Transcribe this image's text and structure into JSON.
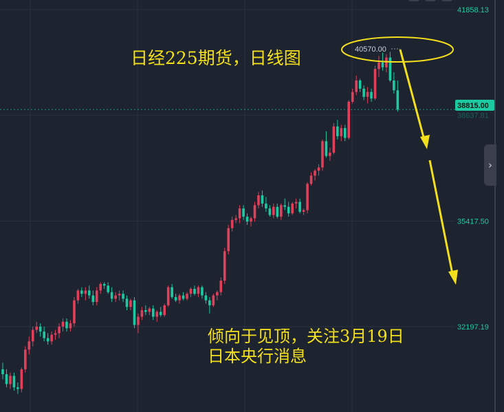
{
  "title": "日经225期货，日线图",
  "annotation": [
    "倾向于见顶，关注3月19日",
    "日本央行消息"
  ],
  "high_label": "40570.00",
  "current_price": "38815.00",
  "colors": {
    "up": "#e0405a",
    "down": "#1cc9a0",
    "annotation": "#f3df1c",
    "background": "#1e2330",
    "grid": "#2b3140"
  },
  "nav_icon": "chevron-right-icon",
  "chart_data": {
    "type": "candlestick",
    "y_ticks": [
      "41858.13",
      "38637.81",
      "35417.50",
      "32197.19"
    ],
    "ylim": [
      29300,
      42200
    ],
    "grid": true,
    "current_price": 38815,
    "candles": [
      {
        "o": 30900,
        "h": 31100,
        "l": 30600,
        "c": 30750
      },
      {
        "o": 30750,
        "h": 30900,
        "l": 30350,
        "c": 30450
      },
      {
        "o": 30450,
        "h": 30800,
        "l": 30300,
        "c": 30700
      },
      {
        "o": 30700,
        "h": 30800,
        "l": 30250,
        "c": 30350
      },
      {
        "o": 30350,
        "h": 30500,
        "l": 30150,
        "c": 30300
      },
      {
        "o": 30300,
        "h": 30950,
        "l": 30200,
        "c": 30900
      },
      {
        "o": 30900,
        "h": 31600,
        "l": 30800,
        "c": 31500
      },
      {
        "o": 31500,
        "h": 31900,
        "l": 31350,
        "c": 31750
      },
      {
        "o": 31750,
        "h": 32200,
        "l": 31600,
        "c": 32100
      },
      {
        "o": 32100,
        "h": 32350,
        "l": 32000,
        "c": 32200
      },
      {
        "o": 32200,
        "h": 32300,
        "l": 31900,
        "c": 32050
      },
      {
        "o": 32050,
        "h": 32200,
        "l": 31750,
        "c": 31850
      },
      {
        "o": 31850,
        "h": 32000,
        "l": 31650,
        "c": 31750
      },
      {
        "o": 31750,
        "h": 32050,
        "l": 31650,
        "c": 31950
      },
      {
        "o": 31950,
        "h": 32100,
        "l": 31800,
        "c": 32000
      },
      {
        "o": 32000,
        "h": 32300,
        "l": 31850,
        "c": 32200
      },
      {
        "o": 32200,
        "h": 32450,
        "l": 32050,
        "c": 32350
      },
      {
        "o": 32350,
        "h": 32450,
        "l": 32050,
        "c": 32150
      },
      {
        "o": 32150,
        "h": 32400,
        "l": 32050,
        "c": 32300
      },
      {
        "o": 32300,
        "h": 33100,
        "l": 32200,
        "c": 33000
      },
      {
        "o": 33000,
        "h": 33350,
        "l": 32900,
        "c": 33300
      },
      {
        "o": 33300,
        "h": 33400,
        "l": 33100,
        "c": 33200
      },
      {
        "o": 33200,
        "h": 33400,
        "l": 33000,
        "c": 33300
      },
      {
        "o": 33300,
        "h": 33450,
        "l": 33050,
        "c": 33150
      },
      {
        "o": 33150,
        "h": 33300,
        "l": 32850,
        "c": 32950
      },
      {
        "o": 32950,
        "h": 33400,
        "l": 32850,
        "c": 33300
      },
      {
        "o": 33300,
        "h": 33550,
        "l": 33200,
        "c": 33500
      },
      {
        "o": 33500,
        "h": 33550,
        "l": 33350,
        "c": 33450
      },
      {
        "o": 33450,
        "h": 33550,
        "l": 33200,
        "c": 33250
      },
      {
        "o": 33250,
        "h": 33400,
        "l": 32950,
        "c": 33050
      },
      {
        "o": 33050,
        "h": 33250,
        "l": 32950,
        "c": 33150
      },
      {
        "o": 33150,
        "h": 33300,
        "l": 33000,
        "c": 33200
      },
      {
        "o": 33200,
        "h": 33300,
        "l": 32950,
        "c": 33050
      },
      {
        "o": 33050,
        "h": 33150,
        "l": 32700,
        "c": 32800
      },
      {
        "o": 32800,
        "h": 33050,
        "l": 32700,
        "c": 33000
      },
      {
        "o": 33000,
        "h": 33100,
        "l": 32150,
        "c": 32250
      },
      {
        "o": 32250,
        "h": 32600,
        "l": 32000,
        "c": 32500
      },
      {
        "o": 32500,
        "h": 32800,
        "l": 32400,
        "c": 32700
      },
      {
        "o": 32700,
        "h": 32850,
        "l": 32550,
        "c": 32650
      },
      {
        "o": 32650,
        "h": 32800,
        "l": 32550,
        "c": 32750
      },
      {
        "o": 32750,
        "h": 32850,
        "l": 32400,
        "c": 32500
      },
      {
        "o": 32500,
        "h": 32700,
        "l": 32350,
        "c": 32650
      },
      {
        "o": 32650,
        "h": 32800,
        "l": 32500,
        "c": 32550
      },
      {
        "o": 32550,
        "h": 32900,
        "l": 32500,
        "c": 32850
      },
      {
        "o": 32850,
        "h": 33450,
        "l": 32800,
        "c": 33400
      },
      {
        "o": 33400,
        "h": 33500,
        "l": 33050,
        "c": 33100
      },
      {
        "o": 33100,
        "h": 33200,
        "l": 32950,
        "c": 33000
      },
      {
        "o": 33000,
        "h": 33200,
        "l": 32900,
        "c": 33150
      },
      {
        "o": 33150,
        "h": 33250,
        "l": 33000,
        "c": 33050
      },
      {
        "o": 33050,
        "h": 33250,
        "l": 33000,
        "c": 33200
      },
      {
        "o": 33200,
        "h": 33400,
        "l": 33100,
        "c": 33350
      },
      {
        "o": 33350,
        "h": 33450,
        "l": 33150,
        "c": 33200
      },
      {
        "o": 33200,
        "h": 33450,
        "l": 33100,
        "c": 33400
      },
      {
        "o": 33400,
        "h": 33450,
        "l": 33050,
        "c": 33150
      },
      {
        "o": 33150,
        "h": 33250,
        "l": 32900,
        "c": 33000
      },
      {
        "o": 33000,
        "h": 33100,
        "l": 32600,
        "c": 32850
      },
      {
        "o": 32850,
        "h": 33200,
        "l": 32800,
        "c": 33150
      },
      {
        "o": 33150,
        "h": 33300,
        "l": 33000,
        "c": 33250
      },
      {
        "o": 33250,
        "h": 33700,
        "l": 33150,
        "c": 33600
      },
      {
        "o": 33600,
        "h": 34600,
        "l": 33500,
        "c": 34500
      },
      {
        "o": 34500,
        "h": 35300,
        "l": 34400,
        "c": 35200
      },
      {
        "o": 35200,
        "h": 35550,
        "l": 35100,
        "c": 35450
      },
      {
        "o": 35450,
        "h": 35600,
        "l": 35350,
        "c": 35500
      },
      {
        "o": 35500,
        "h": 35900,
        "l": 35350,
        "c": 35800
      },
      {
        "o": 35800,
        "h": 35900,
        "l": 35450,
        "c": 35550
      },
      {
        "o": 35550,
        "h": 35650,
        "l": 35300,
        "c": 35400
      },
      {
        "o": 35400,
        "h": 35550,
        "l": 35250,
        "c": 35500
      },
      {
        "o": 35500,
        "h": 36000,
        "l": 35400,
        "c": 35900
      },
      {
        "o": 35900,
        "h": 36300,
        "l": 35800,
        "c": 36200
      },
      {
        "o": 36200,
        "h": 36350,
        "l": 35850,
        "c": 35950
      },
      {
        "o": 35950,
        "h": 36150,
        "l": 35700,
        "c": 35800
      },
      {
        "o": 35800,
        "h": 35900,
        "l": 35550,
        "c": 35600
      },
      {
        "o": 35600,
        "h": 35950,
        "l": 35500,
        "c": 35850
      },
      {
        "o": 35850,
        "h": 35950,
        "l": 35500,
        "c": 35550
      },
      {
        "o": 35550,
        "h": 35950,
        "l": 35450,
        "c": 35900
      },
      {
        "o": 35900,
        "h": 36100,
        "l": 35750,
        "c": 35850
      },
      {
        "o": 35850,
        "h": 36000,
        "l": 35550,
        "c": 35650
      },
      {
        "o": 35650,
        "h": 36000,
        "l": 35600,
        "c": 35950
      },
      {
        "o": 35950,
        "h": 36100,
        "l": 35800,
        "c": 36000
      },
      {
        "o": 36000,
        "h": 36100,
        "l": 35650,
        "c": 35700
      },
      {
        "o": 35700,
        "h": 35800,
        "l": 35600,
        "c": 35750
      },
      {
        "o": 35750,
        "h": 36600,
        "l": 35650,
        "c": 36550
      },
      {
        "o": 36550,
        "h": 36900,
        "l": 36500,
        "c": 36800
      },
      {
        "o": 36800,
        "h": 37000,
        "l": 36650,
        "c": 36950
      },
      {
        "o": 36950,
        "h": 37150,
        "l": 36800,
        "c": 37050
      },
      {
        "o": 37050,
        "h": 37900,
        "l": 36950,
        "c": 37850
      },
      {
        "o": 37850,
        "h": 38150,
        "l": 37350,
        "c": 37400
      },
      {
        "o": 37400,
        "h": 37650,
        "l": 37250,
        "c": 37500
      },
      {
        "o": 37500,
        "h": 38400,
        "l": 37450,
        "c": 38300
      },
      {
        "o": 38300,
        "h": 38500,
        "l": 37900,
        "c": 38000
      },
      {
        "o": 38000,
        "h": 38350,
        "l": 37850,
        "c": 38250
      },
      {
        "o": 38250,
        "h": 38350,
        "l": 37850,
        "c": 37950
      },
      {
        "o": 37950,
        "h": 39100,
        "l": 37900,
        "c": 39050
      },
      {
        "o": 39050,
        "h": 39450,
        "l": 39000,
        "c": 39350
      },
      {
        "o": 39350,
        "h": 39850,
        "l": 39250,
        "c": 39700
      },
      {
        "o": 39700,
        "h": 39750,
        "l": 39350,
        "c": 39450
      },
      {
        "o": 39450,
        "h": 39550,
        "l": 39100,
        "c": 39200
      },
      {
        "o": 39200,
        "h": 39500,
        "l": 39000,
        "c": 39350
      },
      {
        "o": 39350,
        "h": 39450,
        "l": 39050,
        "c": 39150
      },
      {
        "o": 39150,
        "h": 40150,
        "l": 39100,
        "c": 40050
      },
      {
        "o": 40050,
        "h": 40450,
        "l": 39800,
        "c": 40250
      },
      {
        "o": 40250,
        "h": 40550,
        "l": 40000,
        "c": 40100
      },
      {
        "o": 40100,
        "h": 40500,
        "l": 39950,
        "c": 40400
      },
      {
        "o": 40400,
        "h": 40570,
        "l": 39650,
        "c": 39700
      },
      {
        "o": 39700,
        "h": 39950,
        "l": 39300,
        "c": 39400
      },
      {
        "o": 39400,
        "h": 39700,
        "l": 38750,
        "c": 38815
      }
    ]
  }
}
